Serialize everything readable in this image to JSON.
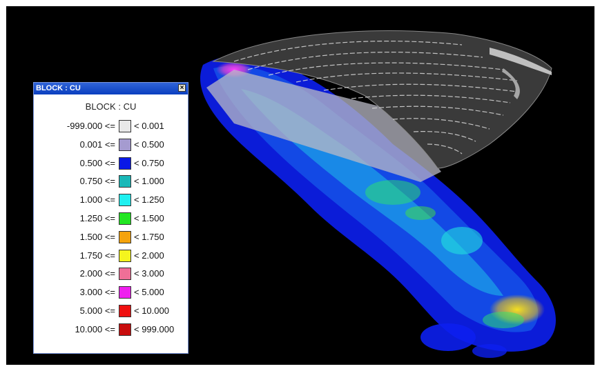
{
  "window": {
    "title": "BLOCK : CU",
    "close_glyph": "×"
  },
  "legend": {
    "heading": "BLOCK : CU",
    "rows": [
      {
        "low": "-999.000 <=",
        "high": "< 0.001",
        "color": "#e8e8e8"
      },
      {
        "low": "0.001 <=",
        "high": "< 0.500",
        "color": "#a59bd0"
      },
      {
        "low": "0.500 <=",
        "high": "< 0.750",
        "color": "#0a18e6"
      },
      {
        "low": "0.750 <=",
        "high": "< 1.000",
        "color": "#19b8b8"
      },
      {
        "low": "1.000 <=",
        "high": "< 1.250",
        "color": "#1ff0f0"
      },
      {
        "low": "1.250 <=",
        "high": "< 1.500",
        "color": "#22e622"
      },
      {
        "low": "1.500 <=",
        "high": "< 1.750",
        "color": "#f5a30c"
      },
      {
        "low": "1.750 <=",
        "high": "< 2.000",
        "color": "#f5f51e"
      },
      {
        "low": "2.000 <=",
        "high": "< 3.000",
        "color": "#ef6f97"
      },
      {
        "low": "3.000 <=",
        "high": "< 5.000",
        "color": "#ef1fef"
      },
      {
        "low": "5.000 <=",
        "high": "< 10.000",
        "color": "#ef1010"
      },
      {
        "low": "10.000 <=",
        "high": "< 999.000",
        "color": "#c80d0d"
      }
    ]
  },
  "scene": {
    "background": "#000000",
    "pit_color": "#3a3a3a",
    "section_color": "#9a9aa6"
  }
}
